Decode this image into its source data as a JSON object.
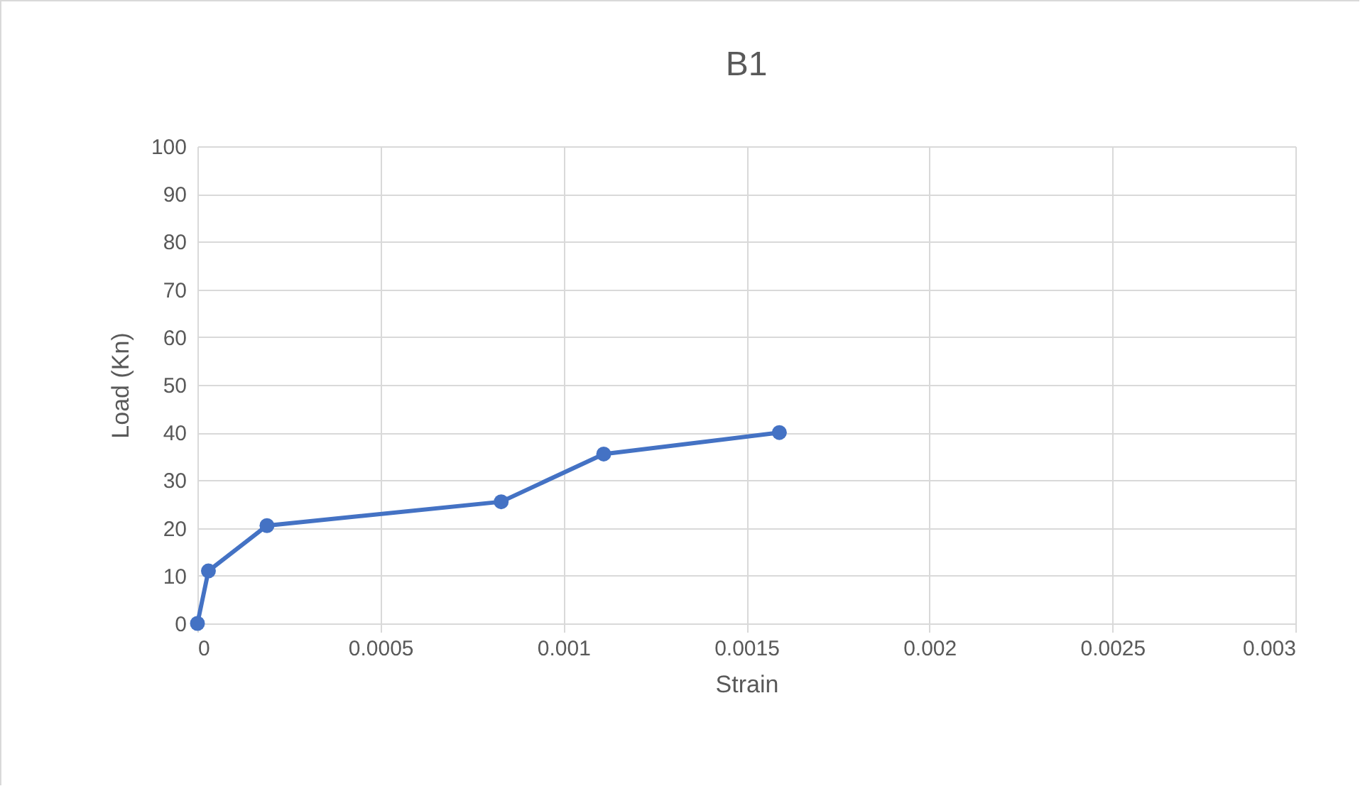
{
  "chart_data": {
    "type": "line",
    "title": "B1",
    "xlabel": "Strain",
    "ylabel": "Load (Kn)",
    "x": [
      0,
      3e-05,
      0.00019,
      0.00083,
      0.00111,
      0.00159
    ],
    "series": [
      {
        "color": "#4472c4",
        "values": [
          0,
          11,
          20.5,
          25.5,
          35.5,
          40
        ]
      }
    ],
    "xlim": [
      0,
      0.003
    ],
    "xticks": [
      0,
      0.0005,
      0.001,
      0.0015,
      0.002,
      0.0025,
      0.003
    ],
    "ylim": [
      0,
      100
    ],
    "yticks": [
      0,
      10,
      20,
      30,
      40,
      50,
      60,
      70,
      80,
      90,
      100
    ],
    "grid": true,
    "marker": "circle",
    "line_style": "solid",
    "legend": false
  }
}
